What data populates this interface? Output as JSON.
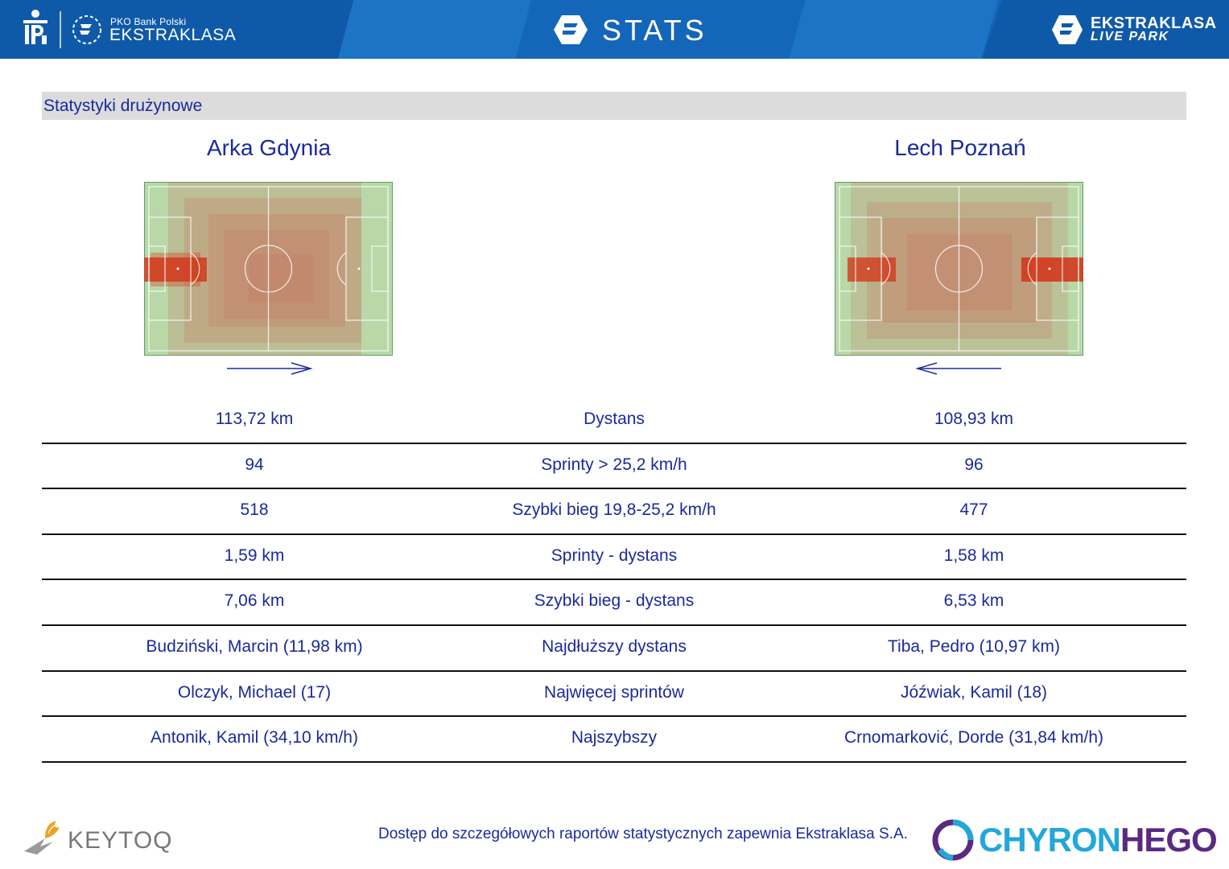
{
  "header": {
    "sponsor_small": "PKO Bank Polski",
    "sponsor_big": "EKSTRAKLASA",
    "title": "STATS",
    "livepark_top": "EKSTRAKLASA",
    "livepark_bottom": "LIVE PARK"
  },
  "section": {
    "title": "Statystyki drużynowe"
  },
  "teams": {
    "home": "Arka Gdynia",
    "away": "Lech Poznań"
  },
  "colors": {
    "header_blue": "#1466b8",
    "text_blue": "#1a2a9a",
    "pitch_green": "#b8d8a8",
    "heat_red": "#d23a1c"
  },
  "stats": [
    {
      "home": "113,72 km",
      "label": "Dystans",
      "away": "108,93 km"
    },
    {
      "home": "94",
      "label": "Sprinty > 25,2 km/h",
      "away": "96"
    },
    {
      "home": "518",
      "label": "Szybki bieg 19,8-25,2 km/h",
      "away": "477"
    },
    {
      "home": "1,59 km",
      "label": "Sprinty - dystans",
      "away": "1,58 km"
    },
    {
      "home": "7,06 km",
      "label": "Szybki bieg - dystans",
      "away": "6,53 km"
    },
    {
      "home": "Budziński, Marcin (11,98 km)",
      "label": "Najdłuższy dystans",
      "away": "Tiba, Pedro (10,97 km)"
    },
    {
      "home": "Olczyk, Michael (17)",
      "label": "Najwięcej sprintów",
      "away": "Jóźwiak, Kamil (18)"
    },
    {
      "home": "Antonik, Kamil (34,10 km/h)",
      "label": "Najszybszy",
      "away": "Crnomarković, Dorde (31,84 km/h)"
    }
  ],
  "footer": {
    "keytoq": "KEYTOQ",
    "note": "Dostęp do szczegółowych raportów statystycznych zapewnia Ekstraklasa S.A.",
    "chyron_a": "CHYRON",
    "chyron_b": "HEGO"
  },
  "icons": {
    "pko": "pko-logo-icon",
    "ekstraklasa": "ekstraklasa-e-icon",
    "stats": "stats-e-icon",
    "livepark": "livepark-e-icon",
    "keytoq": "keytoq-bird-icon",
    "chyron": "chyronhego-swirl-icon"
  }
}
